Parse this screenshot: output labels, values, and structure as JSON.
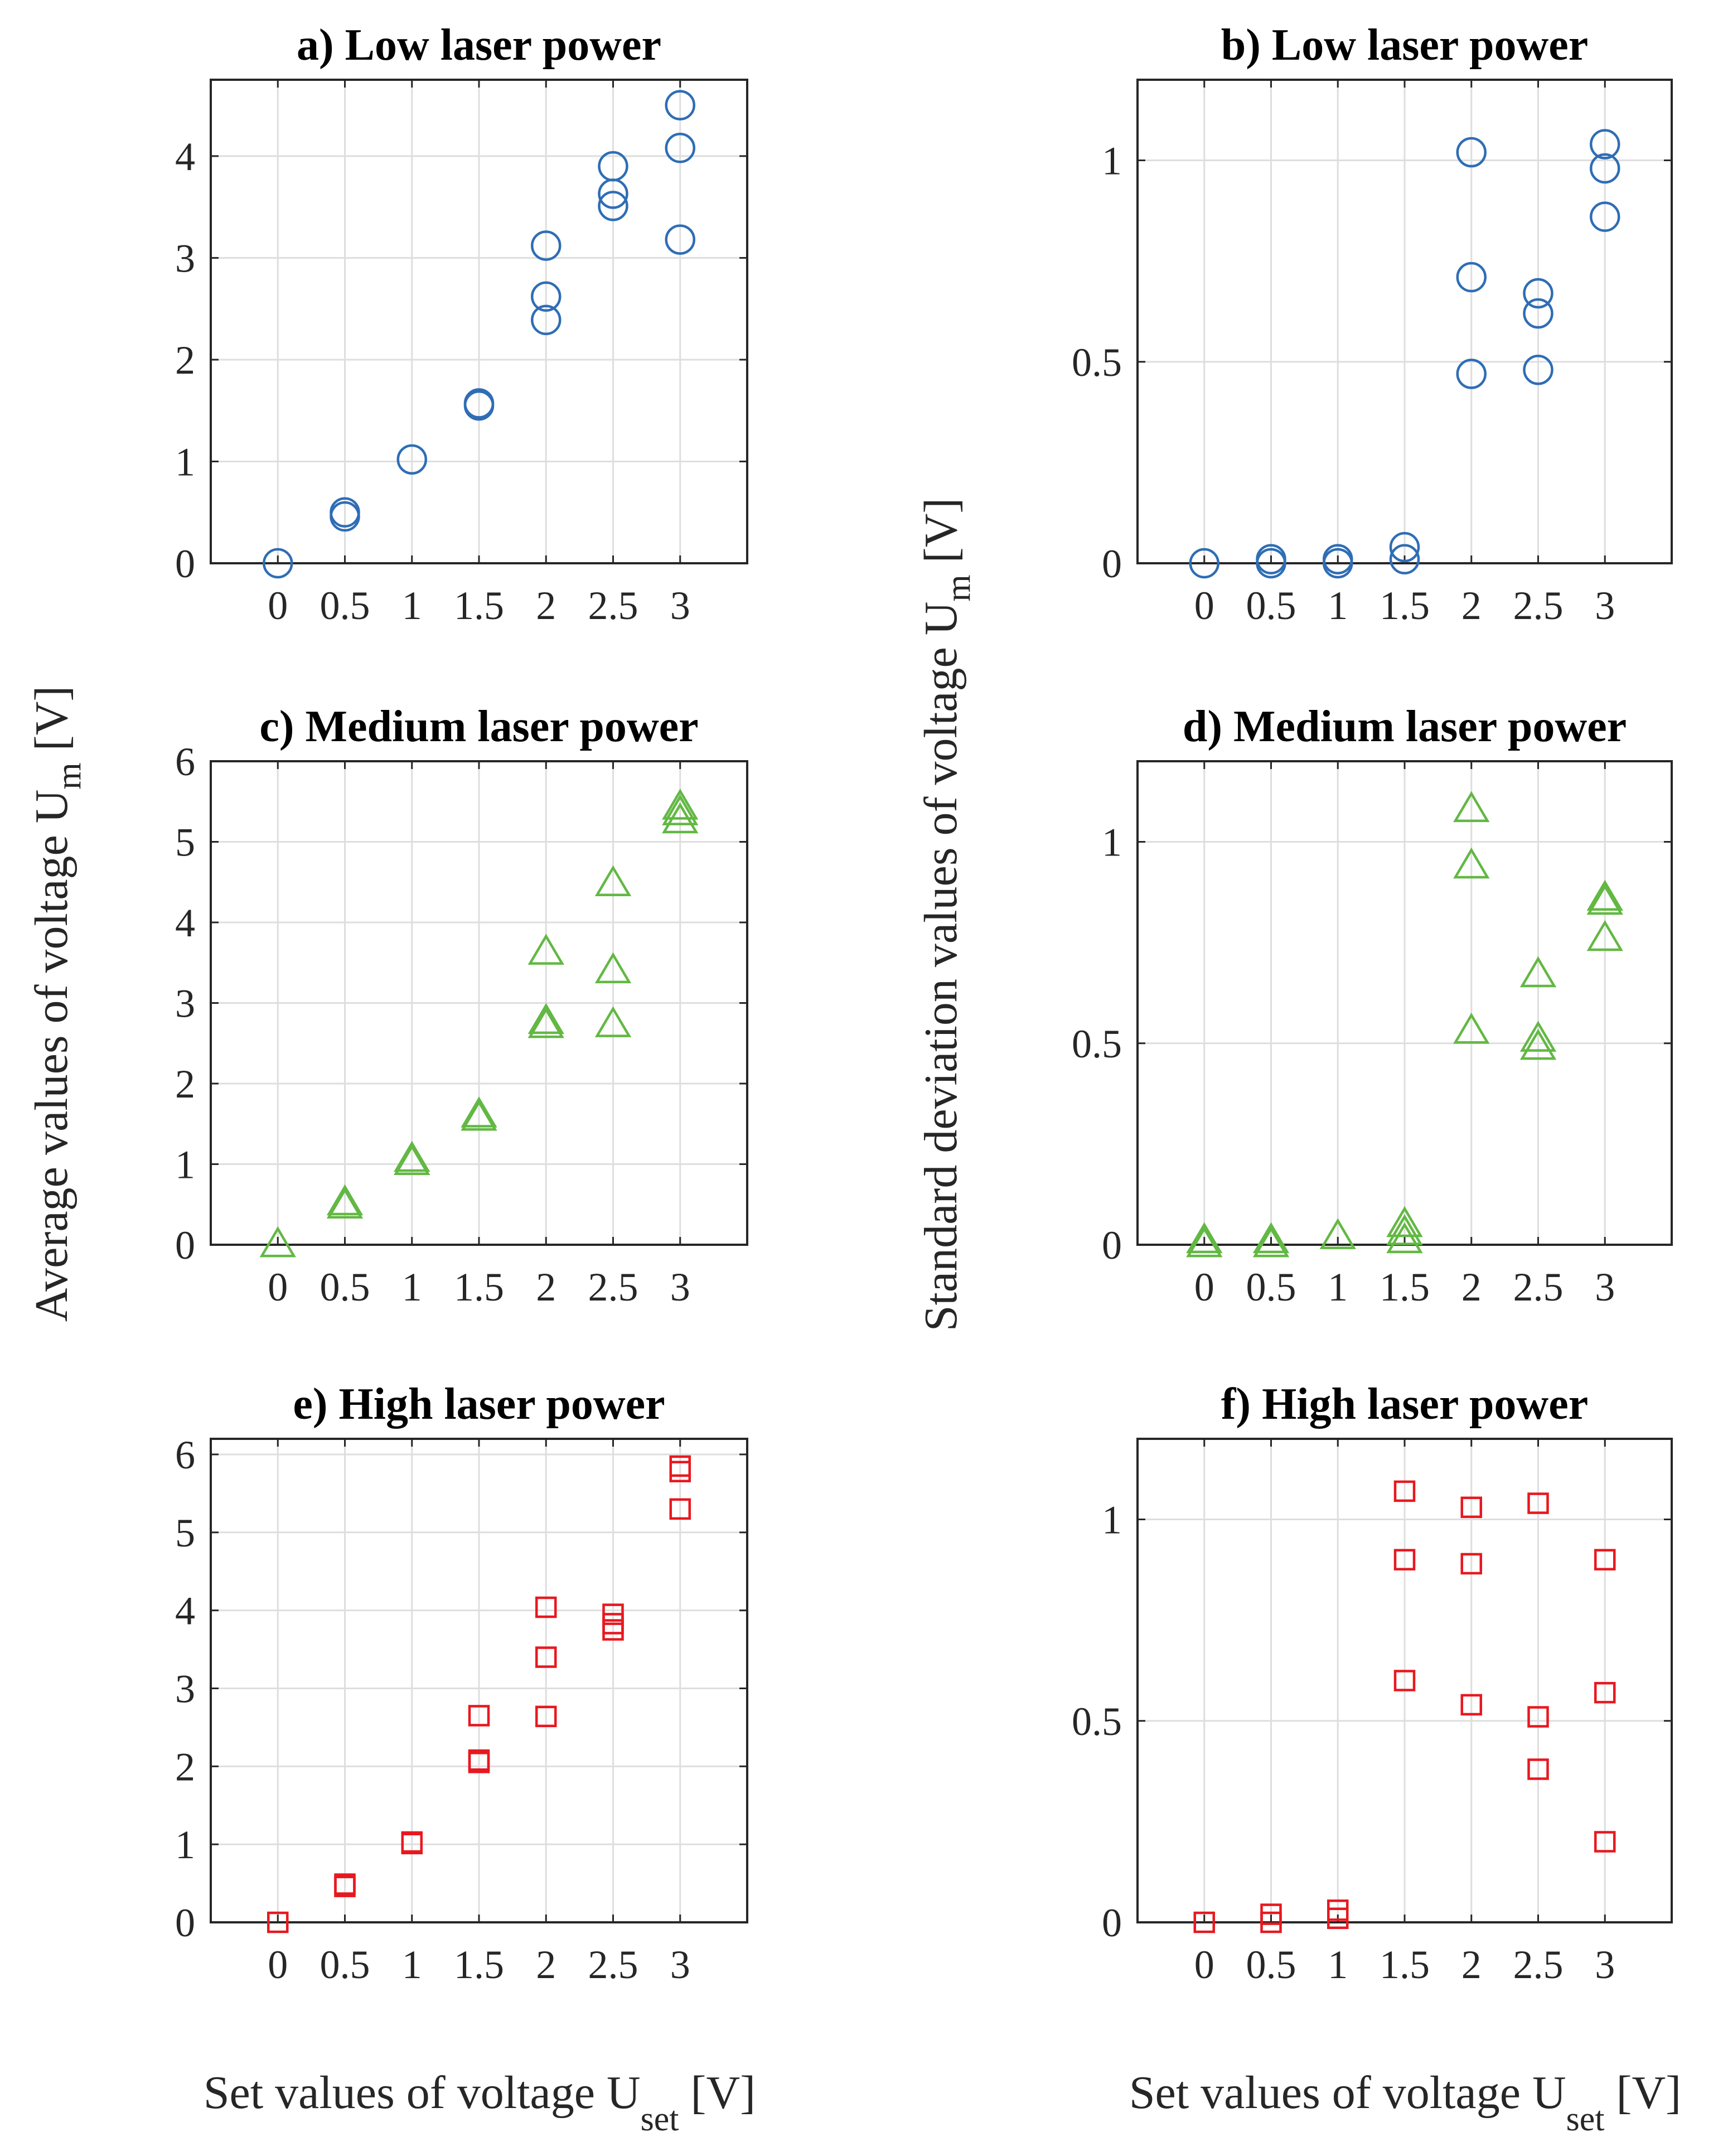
{
  "figure": {
    "left_ylabel": {
      "text": "Average values of voltage U",
      "sub": "m",
      "unit": " [V]"
    },
    "right_ylabel": {
      "text": "Standard deviation values of voltage U",
      "sub": "m",
      "unit": " [V]"
    },
    "xlabel_left": {
      "text": "Set values of voltage U",
      "sub": "set",
      "unit": " [V]"
    },
    "xlabel_right": {
      "text": "Set values of voltage U",
      "sub": "set",
      "unit": " [V]"
    }
  },
  "colors": {
    "low": "#2f6db5",
    "medium": "#62b843",
    "high": "#e8181f"
  },
  "chart_data": [
    {
      "id": "a",
      "type": "scatter",
      "title": "a) Low laser power",
      "marker": "circle",
      "color": "#2f6db5",
      "xlim": [
        -0.5,
        3.5
      ],
      "ylim": [
        0,
        4.75
      ],
      "xticks": [
        0,
        0.5,
        1,
        1.5,
        2,
        2.5,
        3
      ],
      "xticklabels": [
        "0",
        "0.5",
        "1",
        "1.5",
        "2",
        "2.5",
        "3"
      ],
      "yticks": [
        0,
        1,
        2,
        3,
        4
      ],
      "yticklabels": [
        "0",
        "1",
        "2",
        "3",
        "4"
      ],
      "grid": true,
      "x": [
        0,
        0.5,
        0.5,
        1,
        1.5,
        1.5,
        2,
        2,
        2,
        2.5,
        2.5,
        2.5,
        3,
        3,
        3
      ],
      "y": [
        0,
        0.46,
        0.5,
        1.02,
        1.55,
        1.57,
        2.39,
        2.62,
        3.12,
        3.51,
        3.63,
        3.9,
        3.18,
        4.08,
        4.5
      ]
    },
    {
      "id": "b",
      "type": "scatter",
      "title": "b) Low laser power",
      "marker": "circle",
      "color": "#2f6db5",
      "xlim": [
        -0.5,
        3.5
      ],
      "ylim": [
        0,
        1.2
      ],
      "xticks": [
        0,
        0.5,
        1,
        1.5,
        2,
        2.5,
        3
      ],
      "xticklabels": [
        "0",
        "0.5",
        "1",
        "1.5",
        "2",
        "2.5",
        "3"
      ],
      "yticks": [
        0,
        0.5,
        1
      ],
      "yticklabels": [
        "0",
        "0.5",
        "1"
      ],
      "grid": true,
      "x": [
        0,
        0.5,
        0.5,
        1,
        1,
        1.5,
        1.5,
        2,
        2,
        2,
        2.5,
        2.5,
        2.5,
        3,
        3,
        3
      ],
      "y": [
        0,
        0.0,
        0.01,
        0.0,
        0.01,
        0.01,
        0.04,
        0.47,
        0.71,
        1.02,
        0.48,
        0.62,
        0.67,
        0.86,
        0.98,
        1.04
      ]
    },
    {
      "id": "c",
      "type": "scatter",
      "title": "c) Medium laser power",
      "marker": "triangle",
      "color": "#62b843",
      "xlim": [
        -0.5,
        3.5
      ],
      "ylim": [
        0,
        6
      ],
      "xticks": [
        0,
        0.5,
        1,
        1.5,
        2,
        2.5,
        3
      ],
      "xticklabels": [
        "0",
        "0.5",
        "1",
        "1.5",
        "2",
        "2.5",
        "3"
      ],
      "yticks": [
        0,
        1,
        2,
        3,
        4,
        5,
        6
      ],
      "yticklabels": [
        "0",
        "1",
        "2",
        "3",
        "4",
        "5",
        "6"
      ],
      "grid": true,
      "x": [
        0,
        0.5,
        0.5,
        1,
        1,
        1.5,
        1.5,
        2,
        2,
        2,
        2.5,
        2.5,
        2.5,
        3,
        3,
        3
      ],
      "y": [
        0,
        0.48,
        0.52,
        1.02,
        1.06,
        1.57,
        1.61,
        2.72,
        2.77,
        3.63,
        2.73,
        3.4,
        4.48,
        5.26,
        5.36,
        5.43
      ]
    },
    {
      "id": "d",
      "type": "scatter",
      "title": "d) Medium laser power",
      "marker": "triangle",
      "color": "#62b843",
      "xlim": [
        -0.5,
        3.5
      ],
      "ylim": [
        0,
        1.2
      ],
      "xticks": [
        0,
        0.5,
        1,
        1.5,
        2,
        2.5,
        3
      ],
      "xticklabels": [
        "0",
        "0.5",
        "1",
        "1.5",
        "2",
        "2.5",
        "3"
      ],
      "yticks": [
        0,
        0.5,
        1
      ],
      "yticklabels": [
        "0",
        "0.5",
        "1"
      ],
      "grid": true,
      "x": [
        0,
        0,
        0.5,
        0.5,
        1,
        1.5,
        1.5,
        1.5,
        2,
        2,
        2,
        2.5,
        2.5,
        2.5,
        3,
        3,
        3
      ],
      "y": [
        0.0,
        0.01,
        0.0,
        0.01,
        0.02,
        0.01,
        0.03,
        0.05,
        0.53,
        0.94,
        1.08,
        0.49,
        0.51,
        0.67,
        0.76,
        0.85,
        0.86
      ]
    },
    {
      "id": "e",
      "type": "scatter",
      "title": "e) High laser power",
      "marker": "square",
      "color": "#e8181f",
      "xlim": [
        -0.5,
        3.5
      ],
      "ylim": [
        0,
        6.2
      ],
      "xticks": [
        0,
        0.5,
        1,
        1.5,
        2,
        2.5,
        3
      ],
      "xticklabels": [
        "0",
        "0.5",
        "1",
        "1.5",
        "2",
        "2.5",
        "3"
      ],
      "yticks": [
        0,
        1,
        2,
        3,
        4,
        5,
        6
      ],
      "yticklabels": [
        "0",
        "1",
        "2",
        "3",
        "4",
        "5",
        "6"
      ],
      "grid": true,
      "x": [
        0,
        0.5,
        0.5,
        1,
        1,
        1.5,
        1.5,
        1.5,
        2,
        2,
        2,
        2.5,
        2.5,
        2.5,
        3,
        3,
        3
      ],
      "y": [
        0,
        0.46,
        0.49,
        1.01,
        1.03,
        2.05,
        2.08,
        2.65,
        2.64,
        3.4,
        4.04,
        3.75,
        3.83,
        3.95,
        5.3,
        5.78,
        5.85
      ]
    },
    {
      "id": "f",
      "type": "scatter",
      "title": "f) High laser power",
      "marker": "square",
      "color": "#e8181f",
      "xlim": [
        -0.5,
        3.5
      ],
      "ylim": [
        0,
        1.2
      ],
      "xticks": [
        0,
        0.5,
        1,
        1.5,
        2,
        2.5,
        3
      ],
      "xticklabels": [
        "0",
        "0.5",
        "1",
        "1.5",
        "2",
        "2.5",
        "3"
      ],
      "yticks": [
        0,
        0.5,
        1
      ],
      "yticklabels": [
        "0",
        "0.5",
        "1"
      ],
      "grid": true,
      "x": [
        0,
        0.5,
        0.5,
        1,
        1,
        1.5,
        1.5,
        1.5,
        2,
        2,
        2,
        2.5,
        2.5,
        2.5,
        3,
        3,
        3
      ],
      "y": [
        0,
        0.0,
        0.02,
        0.01,
        0.03,
        0.6,
        0.9,
        1.07,
        0.54,
        0.89,
        1.03,
        0.38,
        0.51,
        1.04,
        0.2,
        0.57,
        0.9
      ]
    }
  ]
}
